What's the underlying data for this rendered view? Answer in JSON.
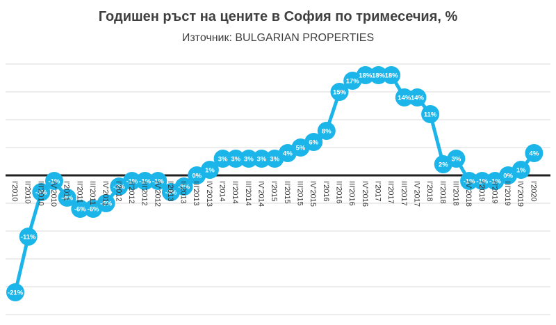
{
  "header": {
    "title": "Годишен ръст на цените в София по тримесечия, %",
    "subtitle": "Източник: BULGARIAN PROPERTIES"
  },
  "colors": {
    "line": "#1cb5ea",
    "marker": "#1cb5ea",
    "data_label": "#ffffff",
    "gridline": "#d9d9d9",
    "zero_axis": "#1f1f1f",
    "axis_label": "#333333",
    "title_text": "#3f3f3f"
  },
  "chart_data": {
    "type": "line",
    "title": "Годишен ръст на цените в София по тримесечия, %",
    "subtitle": "Източник: BULGARIAN PROPERTIES",
    "xlabel": "",
    "ylabel": "",
    "ylim": [
      -25,
      20
    ],
    "gridline_step": 5,
    "grid": true,
    "legend_position": "none",
    "markers": true,
    "data_labels": true,
    "data_label_format": "percent",
    "x_tick_rotation": 90,
    "categories": [
      "I'2010",
      "II'2010",
      "III'2010",
      "IV'2010",
      "I'2011",
      "II'2011",
      "III'2011",
      "IV'2011",
      "I'2012",
      "II'2012",
      "III'2012",
      "IV'2012",
      "I'2013",
      "II'2013",
      "III'2013",
      "IV'2013",
      "I'2014",
      "II'2014",
      "III'2014",
      "IV'2014",
      "I'2015",
      "II'2015",
      "III'2015",
      "IV'2015",
      "I'2016",
      "II'2016",
      "III'2016",
      "IV'2016",
      "I'2017",
      "II'2017",
      "III'2017",
      "IV'2017",
      "I'2018",
      "II'2018",
      "III'2018",
      "IV'2018",
      "I'2019",
      "II'2019",
      "III'2019",
      "IV'2019",
      "I'2020"
    ],
    "values": [
      -21,
      -11,
      -3,
      -1,
      -4,
      -6,
      -6,
      -5,
      -2,
      -1,
      -1,
      -1,
      -3,
      -2,
      0,
      1,
      3,
      3,
      3,
      3,
      3,
      4,
      5,
      6,
      8,
      15,
      17,
      18,
      18,
      18,
      14,
      14,
      11,
      2,
      3,
      -1,
      -1,
      -1,
      0,
      1,
      4
    ]
  }
}
